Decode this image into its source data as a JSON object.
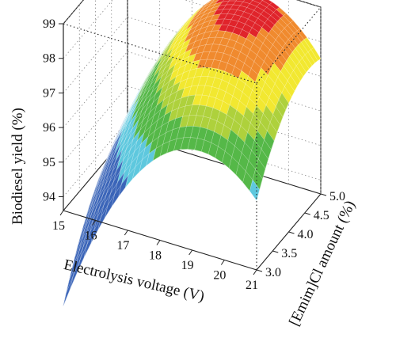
{
  "chart_data": {
    "type": "surface",
    "title": "",
    "xlabel": "Electrolysis voltage (V)",
    "ylabel": "[Emim]Cl amount (%)",
    "zlabel": "Biodiesel yield (%)",
    "xlim": [
      15,
      21
    ],
    "ylim": [
      3.0,
      5.0
    ],
    "zlim": [
      93.6,
      99
    ],
    "x_ticks": [
      "15",
      "16",
      "17",
      "18",
      "19",
      "20",
      "21"
    ],
    "y_ticks": [
      "3.0",
      "3.5",
      "4.0",
      "4.5",
      "5.0"
    ],
    "z_ticks": [
      "94",
      "95",
      "96",
      "97",
      "98",
      "99"
    ],
    "grid": true,
    "color_bands": [
      {
        "from": 93.6,
        "to": 94.9,
        "color": "#3a64b8"
      },
      {
        "from": 94.9,
        "to": 95.9,
        "color": "#5ec8de"
      },
      {
        "from": 95.9,
        "to": 96.9,
        "color": "#55b848"
      },
      {
        "from": 96.9,
        "to": 97.4,
        "color": "#aed13c"
      },
      {
        "from": 97.4,
        "to": 98.0,
        "color": "#f2e830"
      },
      {
        "from": 98.0,
        "to": 98.6,
        "color": "#f08a2e"
      },
      {
        "from": 98.6,
        "to": 99.0,
        "color": "#e0242b"
      }
    ],
    "surface_samples": [
      {
        "x": 15,
        "y": 3.0,
        "z": 94.2
      },
      {
        "x": 15,
        "y": 5.0,
        "z": 94.9
      },
      {
        "x": 18,
        "y": 3.0,
        "z": 96.1
      },
      {
        "x": 18,
        "y": 4.0,
        "z": 97.0
      },
      {
        "x": 18,
        "y": 5.0,
        "z": 97.7
      },
      {
        "x": 19,
        "y": 4.6,
        "z": 98.7
      },
      {
        "x": 21,
        "y": 3.0,
        "z": 93.7
      },
      {
        "x": 21,
        "y": 5.0,
        "z": 97.9
      }
    ]
  }
}
